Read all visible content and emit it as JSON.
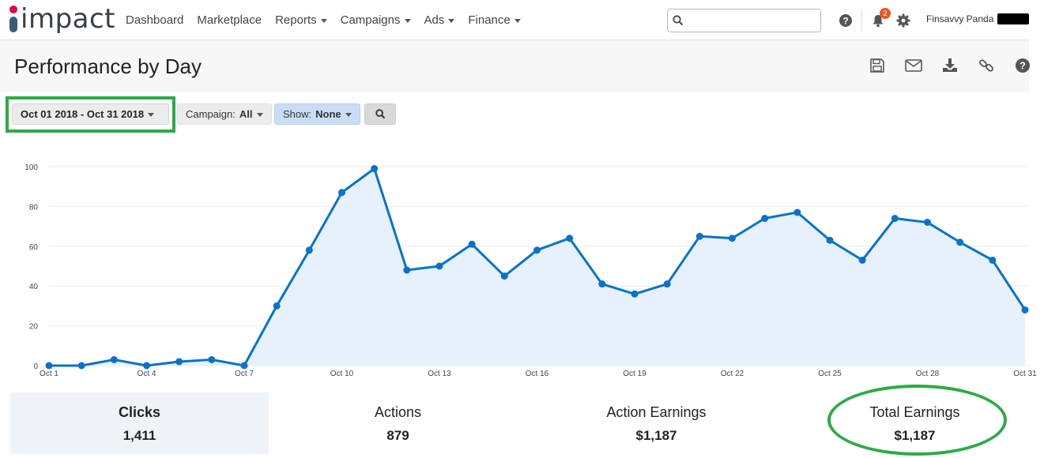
{
  "nav": {
    "logo_text": "impact",
    "items": [
      {
        "label": "Dashboard",
        "dropdown": false
      },
      {
        "label": "Marketplace",
        "dropdown": false
      },
      {
        "label": "Reports",
        "dropdown": true
      },
      {
        "label": "Campaigns",
        "dropdown": true
      },
      {
        "label": "Ads",
        "dropdown": true
      },
      {
        "label": "Finance",
        "dropdown": true
      }
    ],
    "search": {
      "value": "",
      "placeholder": ""
    },
    "notifications_count": "2",
    "user_name": "Finsavvy Panda"
  },
  "page": {
    "title": "Performance by Day",
    "toolbar_icons": [
      "save-icon",
      "email-icon",
      "download-icon",
      "link-icon",
      "help-icon"
    ]
  },
  "filters": {
    "date_range": "Oct 01 2018 - Oct 31 2018",
    "campaign_label": "Campaign:",
    "campaign_value": "All",
    "show_label": "Show:",
    "show_value": "None"
  },
  "colors": {
    "accent": "#0a72c9",
    "area_fill": "#e6f1fb",
    "highlight": "#2daa48",
    "badge": "#e8562a"
  },
  "chart_data": {
    "type": "area",
    "x_ticks": [
      "Oct 1",
      "Oct 4",
      "Oct 7",
      "Oct 10",
      "Oct 13",
      "Oct 16",
      "Oct 19",
      "Oct 22",
      "Oct 25",
      "Oct 28",
      "Oct 31"
    ],
    "x_tick_days": [
      1,
      4,
      7,
      10,
      13,
      16,
      19,
      22,
      25,
      28,
      31
    ],
    "y_ticks": [
      0,
      20,
      40,
      60,
      80,
      100
    ],
    "ylim": [
      0,
      100
    ],
    "x": [
      1,
      2,
      3,
      4,
      5,
      6,
      7,
      8,
      9,
      10,
      11,
      12,
      13,
      14,
      15,
      16,
      17,
      18,
      19,
      20,
      21,
      22,
      23,
      24,
      25,
      26,
      27,
      28,
      29,
      30,
      31
    ],
    "values": [
      0,
      0,
      3,
      0,
      2,
      3,
      0,
      30,
      58,
      87,
      99,
      48,
      50,
      61,
      45,
      58,
      64,
      41,
      36,
      41,
      65,
      64,
      74,
      77,
      63,
      53,
      74,
      72,
      62,
      53,
      28
    ],
    "grid": true
  },
  "stats": [
    {
      "label": "Clicks",
      "value": "1,411"
    },
    {
      "label": "Actions",
      "value": "879"
    },
    {
      "label": "Action Earnings",
      "value": "$1,187"
    },
    {
      "label": "Total Earnings",
      "value": "$1,187"
    }
  ]
}
